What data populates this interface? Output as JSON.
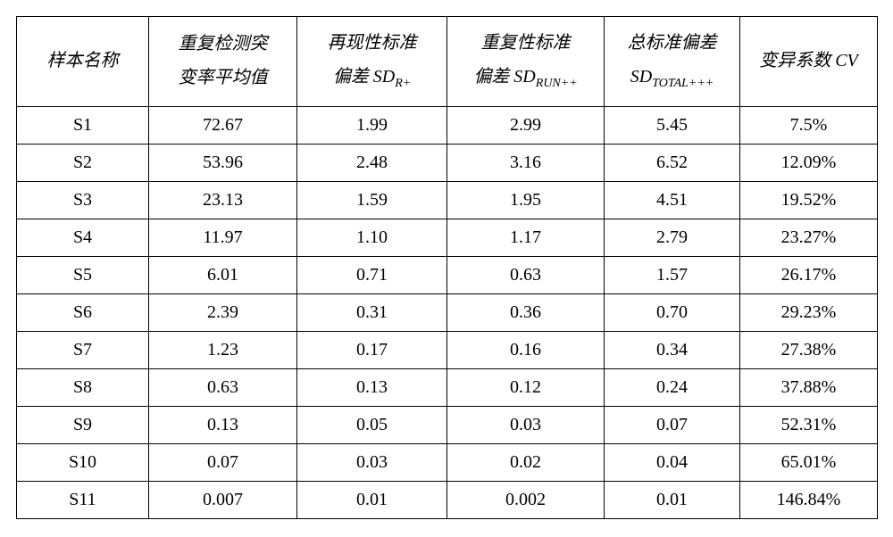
{
  "table": {
    "headers": {
      "h1": "样本名称",
      "h2a": "重复检测突",
      "h2b": "变率平均值",
      "h3a": "再现性标准",
      "h3b_pre": "偏差 SD",
      "h3b_sub": "R+",
      "h4a": "重复性标准",
      "h4b_pre": "偏差 SD",
      "h4b_sub": "RUN++",
      "h5a": "总标准偏差",
      "h5b_pre": "SD",
      "h5b_sub": "TOTAL+++",
      "h6": "变异系数 CV"
    },
    "rows": [
      {
        "c1": "S1",
        "c2": "72.67",
        "c3": "1.99",
        "c4": "2.99",
        "c5": "5.45",
        "c6": "7.5%"
      },
      {
        "c1": "S2",
        "c2": "53.96",
        "c3": "2.48",
        "c4": "3.16",
        "c5": "6.52",
        "c6": "12.09%"
      },
      {
        "c1": "S3",
        "c2": "23.13",
        "c3": "1.59",
        "c4": "1.95",
        "c5": "4.51",
        "c6": "19.52%"
      },
      {
        "c1": "S4",
        "c2": "11.97",
        "c3": "1.10",
        "c4": "1.17",
        "c5": "2.79",
        "c6": "23.27%"
      },
      {
        "c1": "S5",
        "c2": "6.01",
        "c3": "0.71",
        "c4": "0.63",
        "c5": "1.57",
        "c6": "26.17%"
      },
      {
        "c1": "S6",
        "c2": "2.39",
        "c3": "0.31",
        "c4": "0.36",
        "c5": "0.70",
        "c6": "29.23%"
      },
      {
        "c1": "S7",
        "c2": "1.23",
        "c3": "0.17",
        "c4": "0.16",
        "c5": "0.34",
        "c6": "27.38%"
      },
      {
        "c1": "S8",
        "c2": "0.63",
        "c3": "0.13",
        "c4": "0.12",
        "c5": "0.24",
        "c6": "37.88%"
      },
      {
        "c1": "S9",
        "c2": "0.13",
        "c3": "0.05",
        "c4": "0.03",
        "c5": "0.07",
        "c6": "52.31%"
      },
      {
        "c1": "S10",
        "c2": "0.07",
        "c3": "0.03",
        "c4": "0.02",
        "c5": "0.04",
        "c6": "65.01%"
      },
      {
        "c1": "S11",
        "c2": "0.007",
        "c3": "0.01",
        "c4": "0.002",
        "c5": "0.01",
        "c6": "146.84%"
      }
    ]
  }
}
